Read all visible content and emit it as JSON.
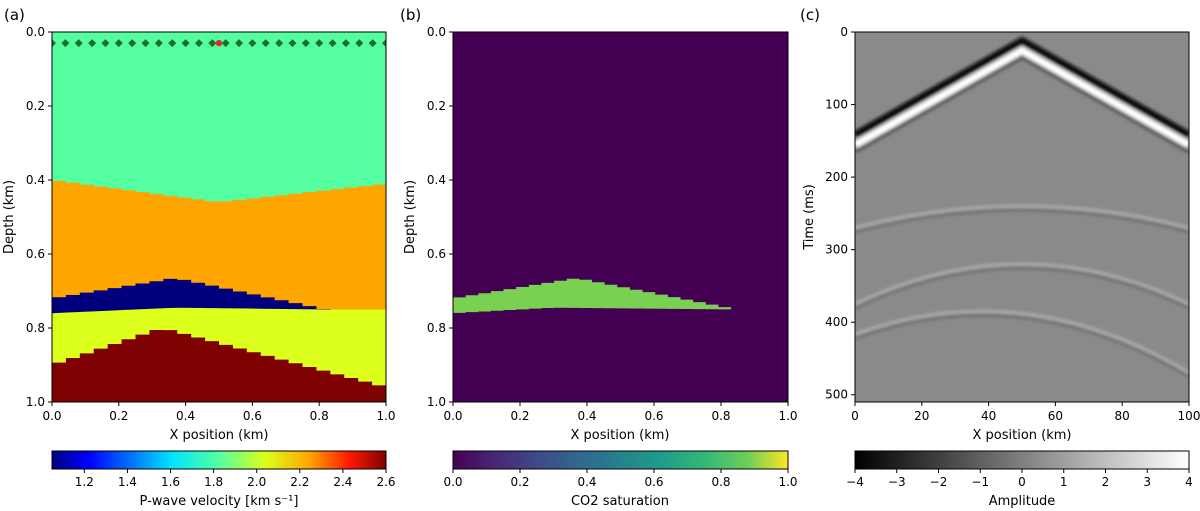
{
  "colors": {
    "water": "#55ff9f",
    "orange_layer": "#ffa500",
    "co2_layer": "#00007f",
    "yellow_layer": "#dcff1b",
    "red_layer": "#7f0000",
    "saturation_bg": "#440154",
    "saturation_plume": "#7ad151",
    "receiver": "#1f6f2a",
    "source": "#e8262a"
  },
  "chart_data": [
    {
      "panel_label": "(a)",
      "type": "heatmap",
      "xlabel": "X position (km)",
      "ylabel": "Depth (km)",
      "xlim": [
        0,
        1
      ],
      "ylim": [
        1,
        0
      ],
      "xticks": [
        "0.0",
        "0.2",
        "0.4",
        "0.6",
        "0.8",
        "1.0"
      ],
      "yticks": [
        "0.0",
        "0.2",
        "0.4",
        "0.6",
        "0.8",
        "1.0"
      ],
      "layers": [
        {
          "name": "water",
          "velocity_km_s": 1.8,
          "top_depth_km": 0.0
        },
        {
          "name": "orange_layer",
          "velocity_km_s": 2.2,
          "top_depth_at_x": [
            [
              0.0,
              0.4
            ],
            [
              0.5,
              0.46
            ],
            [
              1.0,
              0.41
            ]
          ]
        },
        {
          "name": "co2_layer",
          "velocity_km_s": 1.05,
          "top_depth_at_x": [
            [
              0.0,
              0.72
            ],
            [
              0.37,
              0.665
            ],
            [
              0.82,
              0.75
            ]
          ]
        },
        {
          "name": "yellow_layer",
          "velocity_km_s": 2.0,
          "top_depth_at_x": [
            [
              0.0,
              0.76
            ],
            [
              0.37,
              0.745
            ],
            [
              0.83,
              0.75
            ],
            [
              1.0,
              0.75
            ]
          ]
        },
        {
          "name": "red_layer",
          "velocity_km_s": 2.6,
          "top_depth_at_x": [
            [
              0.0,
              0.9
            ],
            [
              0.33,
              0.8
            ],
            [
              1.0,
              0.96
            ]
          ]
        }
      ],
      "receivers_x_km": [
        0.0,
        0.04,
        0.08,
        0.12,
        0.16,
        0.2,
        0.24,
        0.28,
        0.32,
        0.36,
        0.4,
        0.44,
        0.48,
        0.52,
        0.56,
        0.6,
        0.64,
        0.68,
        0.72,
        0.76,
        0.8,
        0.84,
        0.88,
        0.92,
        0.96,
        1.0
      ],
      "receiver_depth_km": 0.03,
      "source": {
        "x_km": 0.5,
        "depth_km": 0.03
      },
      "colorbar": {
        "label": "P-wave velocity [km s⁻¹]",
        "range": [
          1.05,
          2.6
        ],
        "ticks": [
          "1.2",
          "1.4",
          "1.6",
          "1.8",
          "2.0",
          "2.2",
          "2.4",
          "2.6"
        ],
        "colormap": "jet"
      }
    },
    {
      "panel_label": "(b)",
      "type": "heatmap",
      "xlabel": "X position (km)",
      "ylabel": "Depth (km)",
      "xlim": [
        0,
        1
      ],
      "ylim": [
        1,
        0
      ],
      "xticks": [
        "0.0",
        "0.2",
        "0.4",
        "0.6",
        "0.8",
        "1.0"
      ],
      "yticks": [
        "0.0",
        "0.2",
        "0.4",
        "0.6",
        "0.8",
        "1.0"
      ],
      "background_saturation": 0.0,
      "plume_saturation": 0.7,
      "plume_top_at_x": [
        [
          0.0,
          0.72
        ],
        [
          0.37,
          0.665
        ],
        [
          0.82,
          0.745
        ]
      ],
      "plume_bottom_at_x": [
        [
          0.0,
          0.76
        ],
        [
          0.3,
          0.745
        ],
        [
          0.83,
          0.75
        ]
      ],
      "colorbar": {
        "label": "CO2 saturation",
        "range": [
          0,
          1
        ],
        "ticks": [
          "0.0",
          "0.2",
          "0.4",
          "0.6",
          "0.8",
          "1.0"
        ],
        "colormap": "viridis"
      }
    },
    {
      "panel_label": "(c)",
      "type": "heatmap",
      "xlabel": "X position (km)",
      "ylabel": "Time (ms)",
      "xlim": [
        0,
        100
      ],
      "ylim": [
        510,
        0
      ],
      "xticks": [
        "0",
        "20",
        "40",
        "60",
        "80",
        "100"
      ],
      "yticks": [
        "0",
        "100",
        "200",
        "300",
        "400",
        "500"
      ],
      "direct_wave": {
        "apex_x": 50,
        "apex_time_ms": 20,
        "edge_time_ms": 150
      },
      "reflections": [
        {
          "apex_x": 50,
          "apex_time_ms": 240,
          "edge_time_ms": 270
        },
        {
          "apex_x": 50,
          "apex_time_ms": 320,
          "edge_time_ms": 375
        },
        {
          "apex_x": 38,
          "apex_time_ms": 385,
          "edge_time_ms": 440
        }
      ],
      "colorbar": {
        "label": "Amplitude",
        "range": [
          -4,
          4
        ],
        "ticks": [
          "−4",
          "−3",
          "−2",
          "−1",
          "0",
          "1",
          "2",
          "3",
          "4"
        ],
        "colormap": "gray"
      }
    }
  ]
}
